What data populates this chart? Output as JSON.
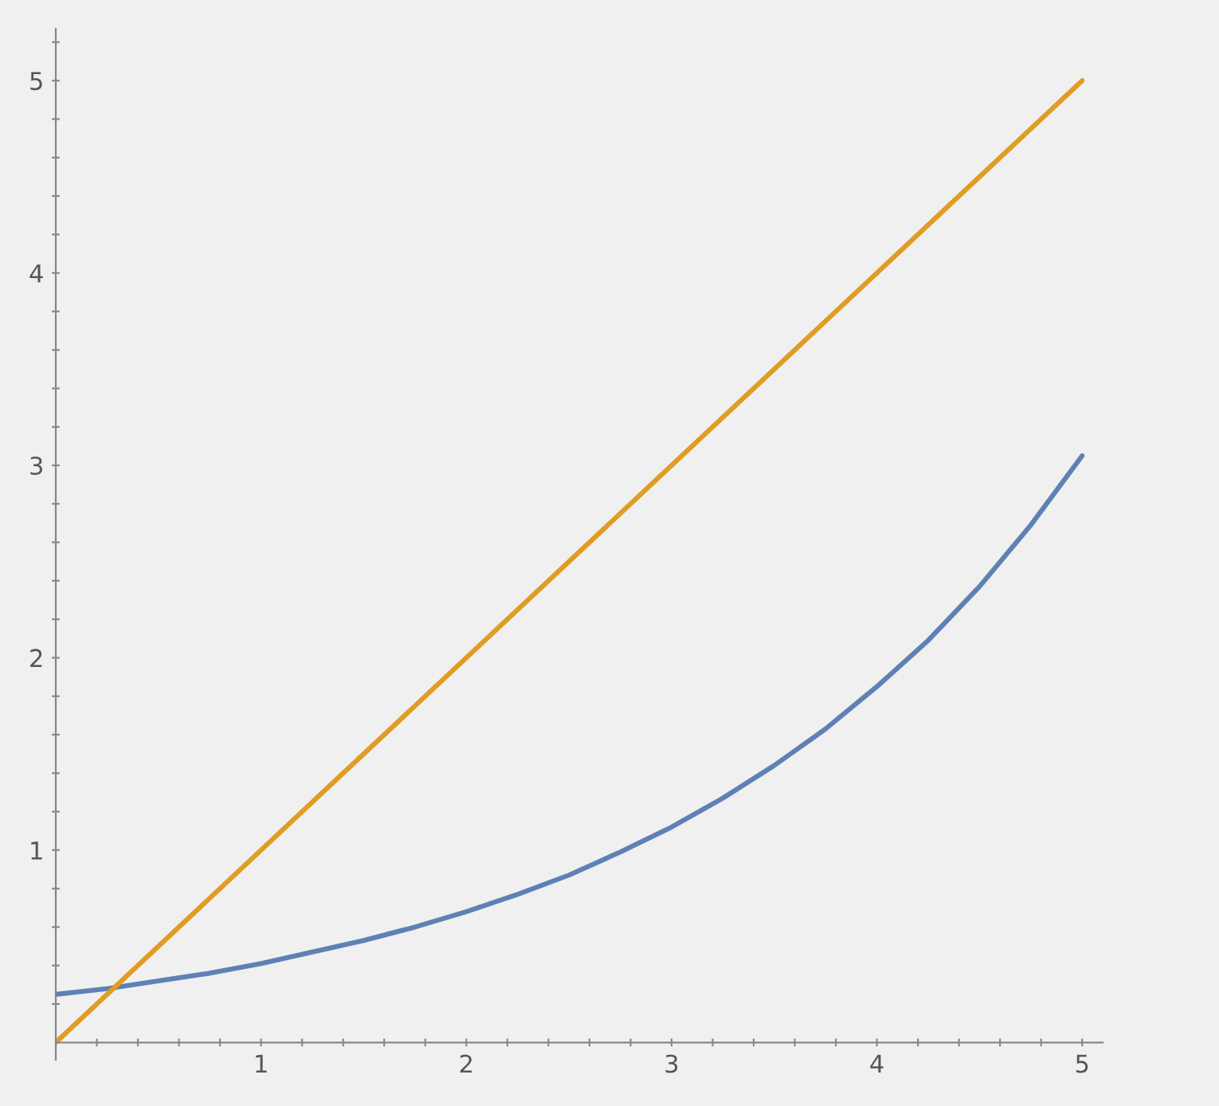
{
  "chart_data": {
    "type": "line",
    "x": [
      0,
      0.25,
      0.5,
      0.75,
      1,
      1.25,
      1.5,
      1.75,
      2,
      2.25,
      2.5,
      2.75,
      3,
      3.25,
      3.5,
      3.75,
      4,
      4.25,
      4.5,
      4.75,
      5
    ],
    "series": [
      {
        "color": "#5e81b5",
        "values": [
          0.25,
          0.28,
          0.32,
          0.36,
          0.41,
          0.47,
          0.53,
          0.6,
          0.68,
          0.77,
          0.87,
          0.99,
          1.12,
          1.27,
          1.44,
          1.63,
          1.85,
          2.09,
          2.37,
          2.69,
          3.05
        ]
      },
      {
        "color": "#e19c24",
        "x": [
          0,
          5
        ],
        "values": [
          0,
          5
        ]
      }
    ],
    "xlim": [
      0,
      5.1
    ],
    "ylim": [
      -0.09,
      5.27
    ],
    "xticks": [
      {
        "value": 0.2,
        "label": null
      },
      {
        "value": 0.4,
        "label": null
      },
      {
        "value": 0.6,
        "label": null
      },
      {
        "value": 0.8,
        "label": null
      },
      1,
      {
        "value": 1.2,
        "label": null
      },
      {
        "value": 1.4,
        "label": null
      },
      {
        "value": 1.6,
        "label": null
      },
      {
        "value": 1.8,
        "label": null
      },
      2,
      {
        "value": 2.2,
        "label": null
      },
      {
        "value": 2.4,
        "label": null
      },
      {
        "value": 2.6,
        "label": null
      },
      {
        "value": 2.8,
        "label": null
      },
      3,
      {
        "value": 3.2,
        "label": null
      },
      {
        "value": 3.4,
        "label": null
      },
      {
        "value": 3.6,
        "label": null
      },
      {
        "value": 3.8,
        "label": null
      },
      4,
      {
        "value": 4.2,
        "label": null
      },
      {
        "value": 4.4,
        "label": null
      },
      {
        "value": 4.6,
        "label": null
      },
      {
        "value": 4.8,
        "label": null
      },
      5
    ],
    "yticks": [
      {
        "value": 0.2,
        "label": null
      },
      {
        "value": 0.4,
        "label": null
      },
      {
        "value": 0.6,
        "label": null
      },
      {
        "value": 0.8,
        "label": null
      },
      1,
      {
        "value": 1.2,
        "label": null
      },
      {
        "value": 1.4,
        "label": null
      },
      {
        "value": 1.6,
        "label": null
      },
      {
        "value": 1.8,
        "label": null
      },
      2,
      {
        "value": 2.2,
        "label": null
      },
      {
        "value": 2.4,
        "label": null
      },
      {
        "value": 2.6,
        "label": null
      },
      {
        "value": 2.8,
        "label": null
      },
      3,
      {
        "value": 3.2,
        "label": null
      },
      {
        "value": 3.4,
        "label": null
      },
      {
        "value": 3.6,
        "label": null
      },
      {
        "value": 3.8,
        "label": null
      },
      4,
      {
        "value": 4.2,
        "label": null
      },
      {
        "value": 4.4,
        "label": null
      },
      {
        "value": 4.6,
        "label": null
      },
      {
        "value": 4.8,
        "label": null
      },
      5,
      {
        "value": 5.2,
        "label": null
      }
    ],
    "grid": false,
    "legend": false
  }
}
